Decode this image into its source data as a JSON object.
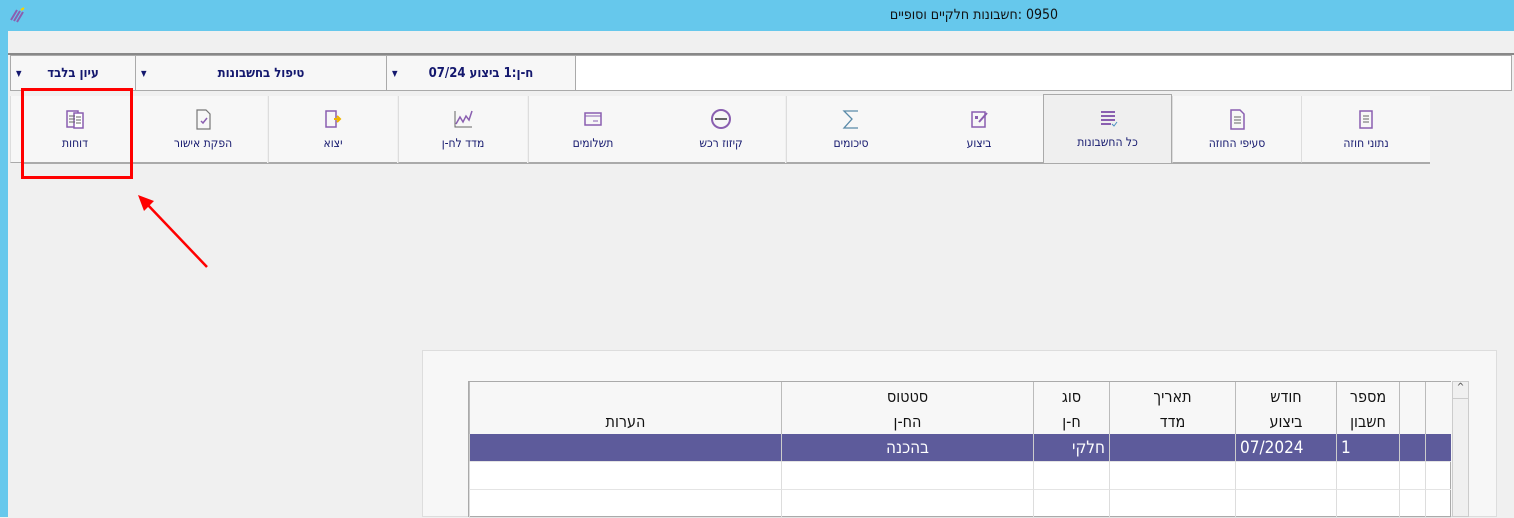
{
  "window": {
    "title": "0950 :חשבונות חלקיים וסופיים",
    "app_icon": "app-logo-icon"
  },
  "dropdowns": [
    {
      "label": "ח-ן:1 ביצוע 07/24"
    },
    {
      "label": "טיפול בחשבונות"
    },
    {
      "label": "עיון בלבד"
    }
  ],
  "tabs": [
    {
      "label": "נתוני חוזה",
      "icon": "contract-data-icon"
    },
    {
      "label": "סעיפי החוזה",
      "icon": "contract-sections-icon"
    },
    {
      "label": "כל החשבונות",
      "icon": "all-accounts-icon",
      "active": true
    },
    {
      "label": "ביצוע",
      "icon": "execution-icon"
    },
    {
      "label": "סיכומים",
      "icon": "sigma-icon"
    },
    {
      "label": "קיזוז רכש",
      "icon": "offset-icon"
    },
    {
      "label": "תשלומים",
      "icon": "payments-icon"
    },
    {
      "label": "מדד לח-ן",
      "icon": "index-chart-icon"
    },
    {
      "label": "יצוא",
      "icon": "export-icon"
    },
    {
      "label": "הפקת אישור",
      "icon": "approval-doc-icon"
    },
    {
      "label": "דוחות",
      "icon": "reports-icon",
      "highlighted": true
    }
  ],
  "grid": {
    "columns": [
      {
        "l1": "מספר",
        "l2": "חשבון"
      },
      {
        "l1": "חודש",
        "l2": "ביצוע"
      },
      {
        "l1": "תאריך",
        "l2": "מדד"
      },
      {
        "l1": "סוג",
        "l2": "ח-ן"
      },
      {
        "l1": "סטטוס",
        "l2": "הח-ן"
      },
      {
        "l1": "",
        "l2": "הערות"
      }
    ],
    "rows": [
      [
        "1",
        "07/2024",
        "",
        "חלקי",
        "בהכנה",
        ""
      ]
    ],
    "selected_color": "#5d5b9b"
  },
  "colors": {
    "titlebar": "#66c8ec",
    "annotation": "#ff0000",
    "tab_text": "#14186e"
  }
}
